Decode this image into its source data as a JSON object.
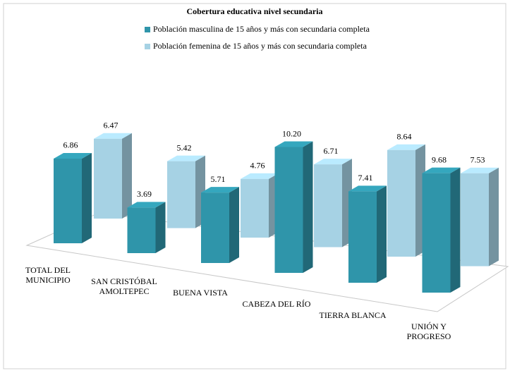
{
  "chart_data": {
    "type": "bar3d",
    "title": "Cobertura educativa nivel secundaria",
    "categories": [
      "TOTAL DEL MUNICIPIO",
      "SAN CRISTÓBAL AMOLTEPEC",
      "BUENA VISTA",
      "CABEZA DEL RÍO",
      "TIERRA BLANCA",
      "UNIÓN Y PROGRESO"
    ],
    "series": [
      {
        "name": "Población masculina de 15 años y más con secundaria completa",
        "color": "#2f95aa",
        "values": [
          6.86,
          3.69,
          5.71,
          10.2,
          7.41,
          9.68
        ],
        "value_labels": [
          "6.86",
          "3.69",
          "5.71",
          "10.20",
          "7.41",
          "9.68"
        ]
      },
      {
        "name": "Población femenina de 15 años y más con secundaria completa",
        "color": "#a6d2e4",
        "values": [
          6.47,
          5.42,
          4.76,
          6.71,
          8.64,
          7.53
        ],
        "value_labels": [
          "6.47",
          "5.42",
          "4.76",
          "6.71",
          "8.64",
          "7.53"
        ]
      }
    ]
  }
}
